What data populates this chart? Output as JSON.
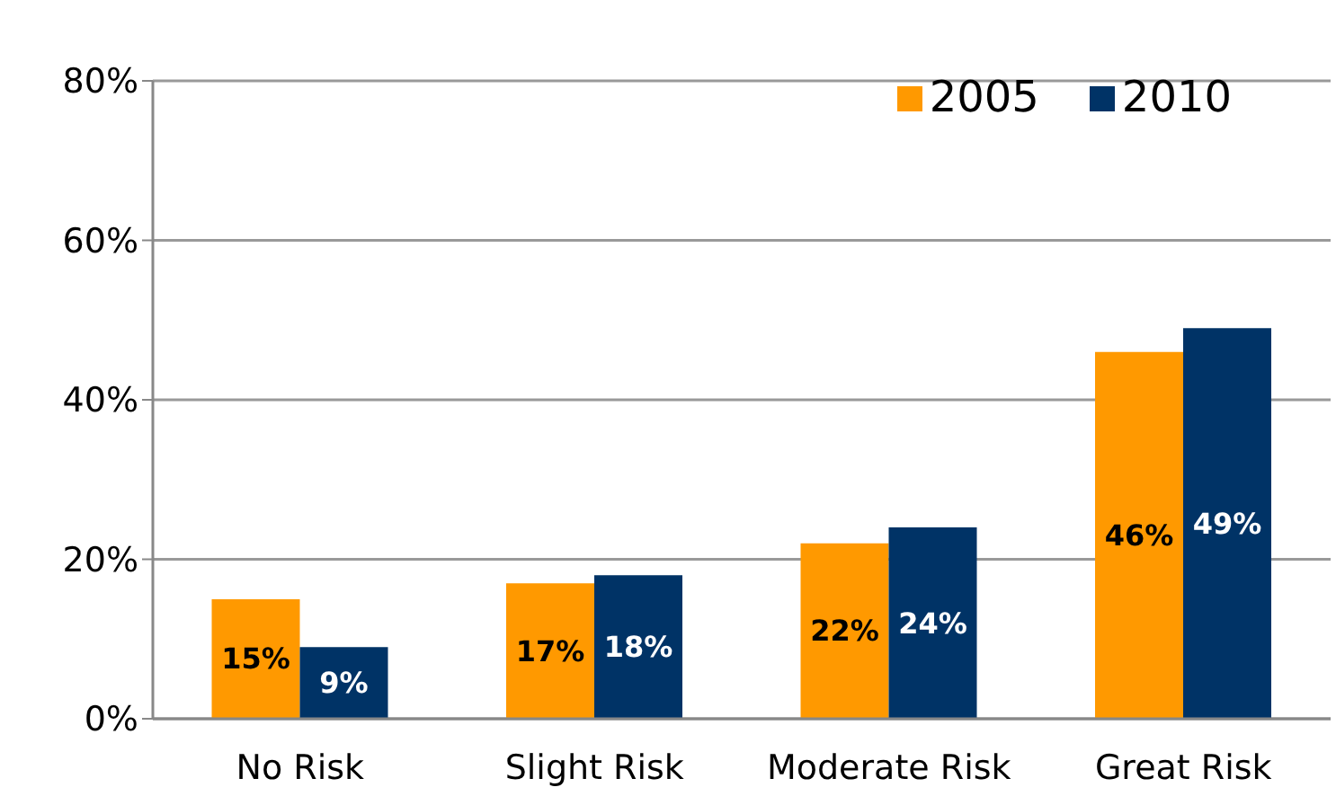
{
  "chart_data": {
    "type": "bar",
    "categories": [
      "No Risk",
      "Slight Risk",
      "Moderate Risk",
      "Great Risk"
    ],
    "series": [
      {
        "name": "2005",
        "color": "#ff9900",
        "values": [
          15,
          17,
          22,
          46
        ],
        "value_labels": [
          "15%",
          "17%",
          "22%",
          "46%"
        ]
      },
      {
        "name": "2010",
        "color": "#003366",
        "values": [
          9,
          18,
          24,
          49
        ],
        "value_labels": [
          "9%",
          "18%",
          "24%",
          "49%"
        ]
      }
    ],
    "ylim": [
      0,
      80
    ],
    "yticks": [
      {
        "value": 0,
        "label": "0%"
      },
      {
        "value": 20,
        "label": "20%"
      },
      {
        "value": 40,
        "label": "40%"
      },
      {
        "value": 60,
        "label": "60%"
      },
      {
        "value": 80,
        "label": "80%"
      }
    ],
    "grid": "y",
    "legend": "top right"
  }
}
